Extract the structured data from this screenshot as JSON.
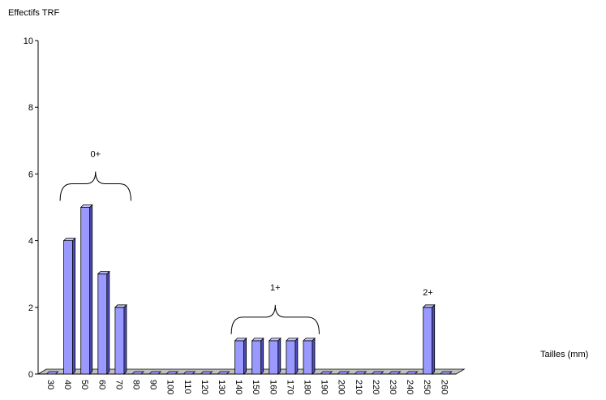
{
  "chart_data": {
    "type": "bar",
    "title": "",
    "xlabel": "Tailles (mm)",
    "ylabel": "Effectifs TRF",
    "ylim": [
      0,
      10
    ],
    "yticks": [
      "0",
      "2",
      "4",
      "6",
      "8",
      "10"
    ],
    "categories": [
      "30",
      "40",
      "50",
      "60",
      "70",
      "80",
      "90",
      "100",
      "110",
      "120",
      "130",
      "140",
      "150",
      "160",
      "170",
      "180",
      "190",
      "200",
      "210",
      "220",
      "230",
      "240",
      "250",
      "260"
    ],
    "values": [
      0,
      4,
      5,
      3,
      2,
      0,
      0,
      0,
      0,
      0,
      0,
      1,
      1,
      1,
      1,
      1,
      0,
      0,
      0,
      0,
      0,
      0,
      2,
      0
    ],
    "grid": false,
    "bar_color": "#9999ff",
    "age_groups": [
      {
        "label": "0+",
        "from": "40",
        "to": "70"
      },
      {
        "label": "1+",
        "from": "140",
        "to": "180"
      },
      {
        "label": "2+",
        "from": "250",
        "to": "250"
      }
    ]
  }
}
